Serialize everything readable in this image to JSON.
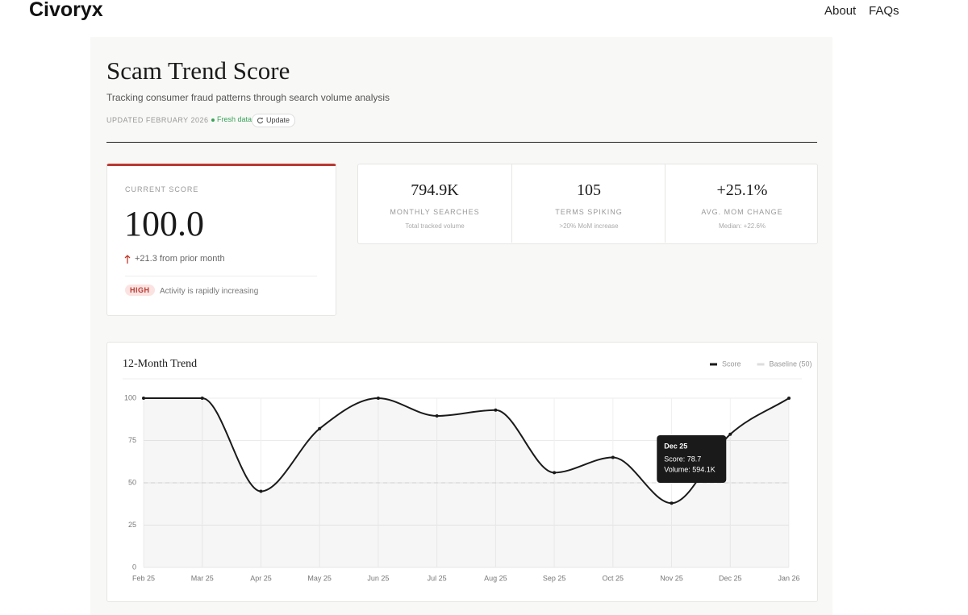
{
  "nav": {
    "brand": "Civoryx",
    "links": [
      "About",
      "FAQs"
    ]
  },
  "header": {
    "title": "Scam Trend Score",
    "subtitle": "Tracking consumer fraud patterns through search volume analysis",
    "updated": "UPDATED FEBRUARY 2026",
    "status": "Fresh data",
    "button": "Update"
  },
  "score_card": {
    "label": "CURRENT SCORE",
    "value": "100.0",
    "change": "+21.3 from prior month",
    "badge": "HIGH",
    "description": "Activity is rapidly increasing"
  },
  "stats": [
    {
      "value": "794.9K",
      "label": "MONTHLY SEARCHES",
      "note": "Total tracked volume"
    },
    {
      "value": "105",
      "label": "TERMS SPIKING",
      "note": ">20% MoM increase"
    },
    {
      "value": "+25.1%",
      "label": "AVG. MOM CHANGE",
      "note": "Median: +22.6%"
    }
  ],
  "chart_data": {
    "type": "line",
    "title": "12-Month Trend",
    "categories": [
      "Feb 25",
      "Mar 25",
      "Apr 25",
      "May 25",
      "Jun 25",
      "Jul 25",
      "Aug 25",
      "Sep 25",
      "Oct 25",
      "Nov 25",
      "Dec 25",
      "Jan 26"
    ],
    "series": [
      {
        "name": "Score",
        "color": "#1a1a1a",
        "values": [
          100,
          100,
          45,
          82,
          100,
          89.5,
          93,
          56,
          65,
          38,
          78.7,
          100
        ]
      },
      {
        "name": "Baseline (50)",
        "color": "#dddddd",
        "values": [
          50,
          50,
          50,
          50,
          50,
          50,
          50,
          50,
          50,
          50,
          50,
          50
        ]
      }
    ],
    "ylim": [
      0,
      100
    ],
    "yticks": [
      0,
      25,
      50,
      75,
      100
    ],
    "grid": true,
    "tooltip": {
      "title": "Dec 25",
      "lines": [
        "Score: 78.7",
        "Volume: 594.1K"
      ]
    }
  }
}
